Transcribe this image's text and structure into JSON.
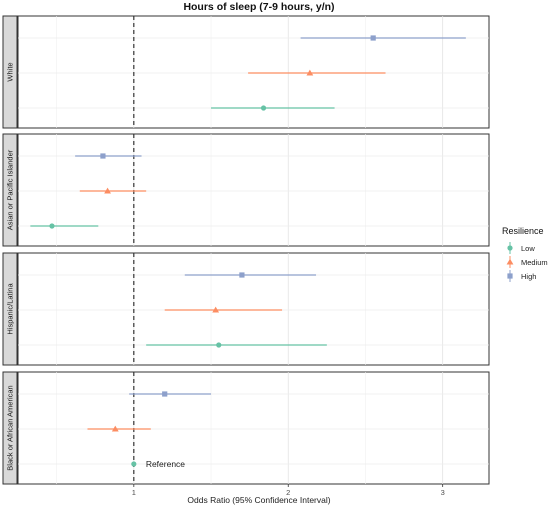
{
  "chart_data": {
    "type": "forest",
    "title": "Hours of sleep (7-9 hours, y/n)",
    "xlabel": "Odds Ratio (95% Confidence Interval)",
    "xlim": [
      0.25,
      3.3
    ],
    "xticks": [
      1,
      2,
      3
    ],
    "reference_line": 1,
    "legend": {
      "title": "Resilience",
      "placement": "right",
      "items": [
        {
          "name": "Low",
          "color": "#66c2a5",
          "shape": "circle"
        },
        {
          "name": "Medium",
          "color": "#fc8d62",
          "shape": "triangle"
        },
        {
          "name": "High",
          "color": "#8da0cb",
          "shape": "square"
        }
      ]
    },
    "panels": [
      {
        "label": "White",
        "points": [
          {
            "level": "High",
            "or": 2.55,
            "lo": 2.08,
            "hi": 3.15
          },
          {
            "level": "Medium",
            "or": 2.14,
            "lo": 1.74,
            "hi": 2.63
          },
          {
            "level": "Low",
            "or": 1.84,
            "lo": 1.5,
            "hi": 2.3
          }
        ]
      },
      {
        "label": "Asian or Pacific Islander",
        "points": [
          {
            "level": "High",
            "or": 0.8,
            "lo": 0.62,
            "hi": 1.05
          },
          {
            "level": "Medium",
            "or": 0.83,
            "lo": 0.65,
            "hi": 1.08
          },
          {
            "level": "Low",
            "or": 0.47,
            "lo": 0.33,
            "hi": 0.77
          }
        ]
      },
      {
        "label": "Hispanic/Latina",
        "points": [
          {
            "level": "High",
            "or": 1.7,
            "lo": 1.33,
            "hi": 2.18
          },
          {
            "level": "Medium",
            "or": 1.53,
            "lo": 1.2,
            "hi": 1.96
          },
          {
            "level": "Low",
            "or": 1.55,
            "lo": 1.08,
            "hi": 2.25
          }
        ]
      },
      {
        "label": "Black or African American",
        "points": [
          {
            "level": "High",
            "or": 1.2,
            "lo": 0.97,
            "hi": 1.5
          },
          {
            "level": "Medium",
            "or": 0.88,
            "lo": 0.7,
            "hi": 1.11
          },
          {
            "level": "Low",
            "or": 1.0,
            "lo": null,
            "hi": null,
            "annotation": "Reference"
          }
        ]
      }
    ]
  }
}
